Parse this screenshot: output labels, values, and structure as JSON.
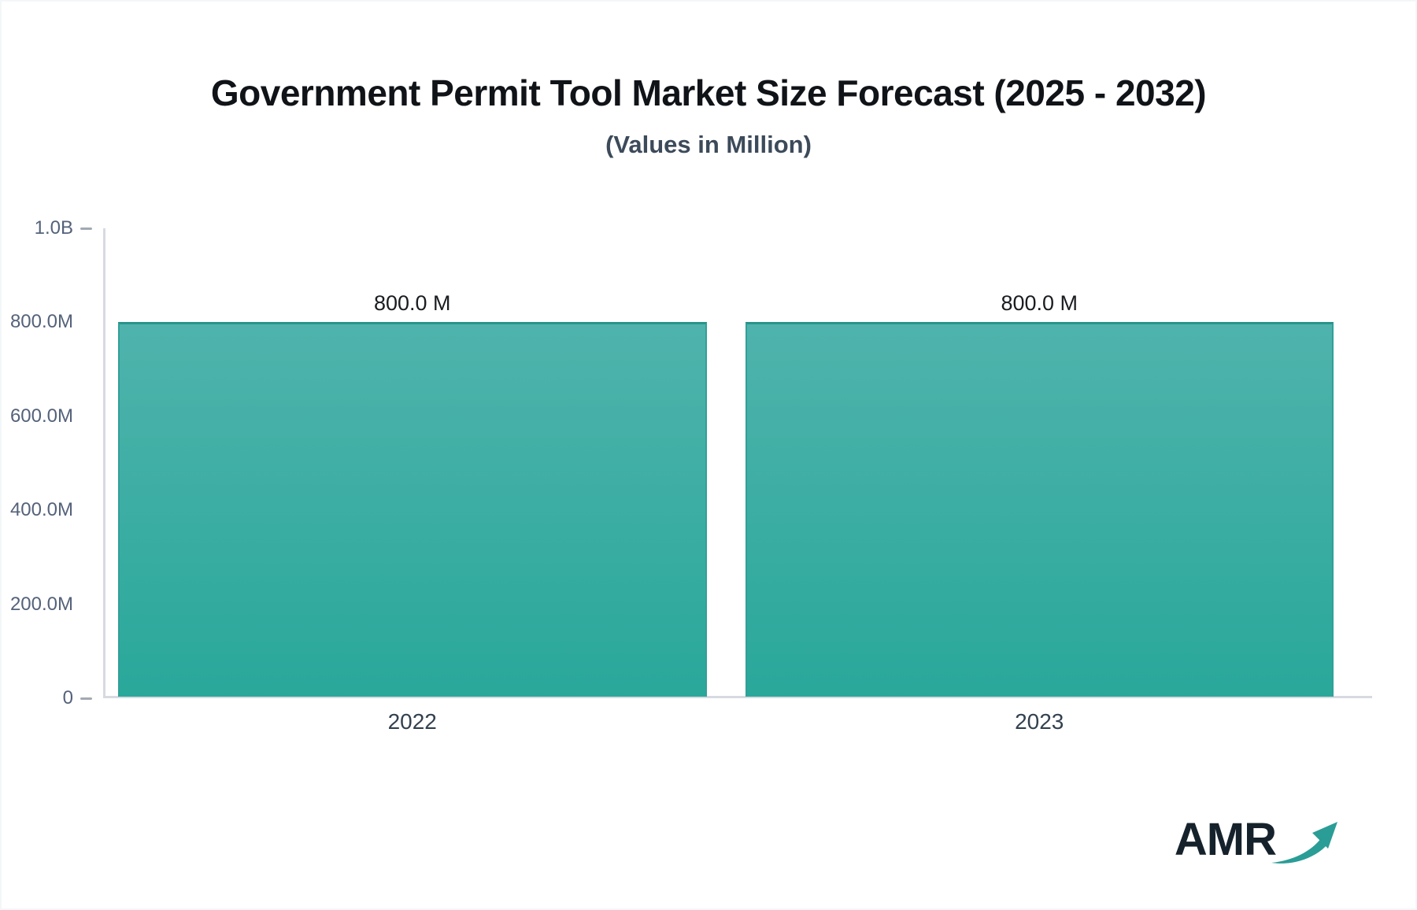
{
  "title": "Government Permit Tool Market Size Forecast (2025 - 2032)",
  "subtitle": "(Values in Million)",
  "chart_data": {
    "type": "bar",
    "categories": [
      "2022",
      "2023"
    ],
    "values": [
      800.0,
      800.0
    ],
    "value_labels": [
      "800.0 M",
      "800.0 M"
    ],
    "series_unit": "Million",
    "ylim": [
      0,
      1000
    ],
    "yticks": [
      {
        "value": 0,
        "label": "0",
        "dash": true
      },
      {
        "value": 200,
        "label": "200.0M",
        "dash": false
      },
      {
        "value": 400,
        "label": "400.0M",
        "dash": false
      },
      {
        "value": 600,
        "label": "600.0M",
        "dash": false
      },
      {
        "value": 800,
        "label": "800.0M",
        "dash": false
      },
      {
        "value": 1000,
        "label": "1.0B",
        "dash": true
      }
    ],
    "grid": false,
    "legend": false,
    "bar_color_top": "#4fb3ac",
    "bar_color_bottom": "#29a89a",
    "bar_border_side": "#31a099",
    "bar_border_top": "#28948b",
    "axis_color": "#d7dae0"
  },
  "logo": {
    "text": "AMR",
    "text_color": "#16222b",
    "arrow_color": "#2a9d96"
  }
}
